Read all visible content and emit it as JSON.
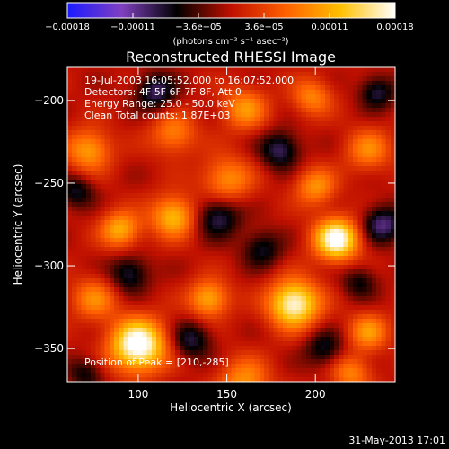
{
  "chart_data": {
    "type": "heatmap",
    "title": "Reconstructed RHESSI Image",
    "xlabel": "Heliocentric X (arcsec)",
    "ylabel": "Heliocentric Y (arcsec)",
    "xlim": [
      60,
      245
    ],
    "ylim": [
      -370,
      -180
    ],
    "x_ticks": [
      {
        "value": 100,
        "label": "100"
      },
      {
        "value": 150,
        "label": "150"
      },
      {
        "value": 200,
        "label": "200"
      }
    ],
    "y_ticks": [
      {
        "value": -200,
        "label": "−200"
      },
      {
        "value": -250,
        "label": "−250"
      },
      {
        "value": -300,
        "label": "−300"
      },
      {
        "value": -350,
        "label": "−350"
      }
    ],
    "colorbar": {
      "range": [
        -0.00018,
        0.00018
      ],
      "tick_labels": [
        "−0.00018",
        "−0.00011",
        "−3.6e−05",
        "3.6e−05",
        "0.00011",
        "0.00018"
      ],
      "unit_label": "(photons cm⁻² s⁻¹ asec⁻²)",
      "colors": [
        "#1a1aff",
        "#8040c0",
        "#000000",
        "#c01000",
        "#ff6000",
        "#ffc000",
        "#ffffff"
      ]
    },
    "annotations": [
      "19-Jul-2003 16:05:52.000 to 16:07:52.000",
      "Detectors: 4F 5F 6F 7F 8F, Att 0",
      "Energy Range: 25.0 - 50.0 keV",
      "Clean    Total counts: 1.87E+03"
    ],
    "peak_label": "Position of Peak = [210,-285]",
    "peak": [
      210,
      -285
    ],
    "blobs": [
      {
        "x": 212,
        "y": -284,
        "s": 9,
        "a": 1.9
      },
      {
        "x": 100,
        "y": -348,
        "s": 11,
        "a": 2.0
      },
      {
        "x": 188,
        "y": -323,
        "s": 10,
        "a": 1.8
      },
      {
        "x": 120,
        "y": -270,
        "s": 9,
        "a": 1.2
      },
      {
        "x": 90,
        "y": -278,
        "s": 8,
        "a": 1.1
      },
      {
        "x": 72,
        "y": -230,
        "s": 9,
        "a": 1.0
      },
      {
        "x": 150,
        "y": -248,
        "s": 10,
        "a": 0.9
      },
      {
        "x": 200,
        "y": -252,
        "s": 8,
        "a": 0.9
      },
      {
        "x": 230,
        "y": -230,
        "s": 9,
        "a": 0.8
      },
      {
        "x": 120,
        "y": -220,
        "s": 9,
        "a": 0.8
      },
      {
        "x": 160,
        "y": -205,
        "s": 9,
        "a": 0.9
      },
      {
        "x": 198,
        "y": -198,
        "s": 8,
        "a": 0.8
      },
      {
        "x": 140,
        "y": -320,
        "s": 8,
        "a": 1.1
      },
      {
        "x": 230,
        "y": -340,
        "s": 8,
        "a": 0.9
      },
      {
        "x": 160,
        "y": -370,
        "s": 10,
        "a": 0.9
      },
      {
        "x": 220,
        "y": -365,
        "s": 8,
        "a": 0.8
      },
      {
        "x": 75,
        "y": -320,
        "s": 9,
        "a": 0.8
      },
      {
        "x": 110,
        "y": -195,
        "s": 8,
        "a": -0.9
      },
      {
        "x": 145,
        "y": -270,
        "s": 9,
        "a": -0.9
      },
      {
        "x": 95,
        "y": -305,
        "s": 8,
        "a": -0.8
      },
      {
        "x": 238,
        "y": -275,
        "s": 8,
        "a": -1.0
      },
      {
        "x": 180,
        "y": -230,
        "s": 8,
        "a": -0.9
      },
      {
        "x": 170,
        "y": -290,
        "s": 8,
        "a": -0.7
      },
      {
        "x": 130,
        "y": -345,
        "s": 8,
        "a": -0.8
      },
      {
        "x": 205,
        "y": -350,
        "s": 8,
        "a": -0.7
      },
      {
        "x": 235,
        "y": -195,
        "s": 7,
        "a": -0.8
      },
      {
        "x": 65,
        "y": -255,
        "s": 7,
        "a": -0.7
      },
      {
        "x": 70,
        "y": -365,
        "s": 7,
        "a": -0.6
      },
      {
        "x": 225,
        "y": -310,
        "s": 7,
        "a": -0.6
      }
    ]
  },
  "footer": {
    "timestamp": "31-May-2013 17:01"
  }
}
